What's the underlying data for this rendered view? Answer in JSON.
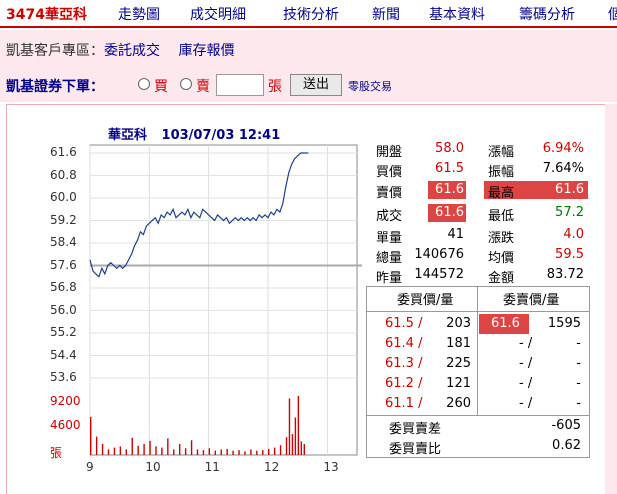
{
  "nav": {
    "stock": "3474華亞科",
    "items": [
      "走勢圖",
      "成交明細",
      "技術分析",
      "新聞",
      "基本資料",
      "籌碼分析",
      "個"
    ]
  },
  "zone": {
    "label": "凱基客戶專區：",
    "link1": "委託成交",
    "link2": "庫存報價"
  },
  "order": {
    "label": "凱基證券下單：",
    "buy": "買",
    "sell": "賣",
    "unit": "張",
    "send": "送出",
    "odd": "零股交易"
  },
  "chart_data": {
    "type": "line",
    "title": "華亞科",
    "datetime": "103/07/03 12:41",
    "y_ticks": [
      "61.6",
      "60.8",
      "60.0",
      "59.2",
      "58.4",
      "57.6",
      "56.8",
      "56.0",
      "55.2",
      "54.4",
      "53.6"
    ],
    "ylim": [
      53.6,
      61.6
    ],
    "ref_price": 57.6,
    "volume_ticks": [
      "9200",
      "4600",
      "張"
    ],
    "x_ticks": [
      "9",
      "10",
      "11",
      "12",
      "13"
    ],
    "x_range_hours": [
      9,
      13.5
    ],
    "series": [
      {
        "x": [
          9.0,
          9.05,
          9.1,
          9.15,
          9.2,
          9.25,
          9.3,
          9.35,
          9.4,
          9.45,
          9.5,
          9.55,
          9.6,
          9.65,
          9.7,
          9.75,
          9.8,
          9.85,
          9.9,
          9.95,
          10.0,
          10.05,
          10.1,
          10.15,
          10.2,
          10.25,
          10.3,
          10.35,
          10.4,
          10.45,
          10.5,
          10.55,
          10.6,
          10.65,
          10.7,
          10.75,
          10.8,
          10.85,
          10.9,
          10.95,
          11.0,
          11.05,
          11.1,
          11.15,
          11.2,
          11.25,
          11.3,
          11.35,
          11.4,
          11.45,
          11.5,
          11.55,
          11.6,
          11.65,
          11.7,
          11.75,
          11.8,
          11.85,
          11.9,
          11.95,
          12.0,
          12.05,
          12.1,
          12.15,
          12.2,
          12.25,
          12.3,
          12.35,
          12.4,
          12.45,
          12.5,
          12.55,
          12.6,
          12.68
        ],
        "y": [
          57.8,
          57.4,
          57.3,
          57.2,
          57.5,
          57.3,
          57.6,
          57.7,
          57.6,
          57.5,
          57.6,
          57.5,
          57.6,
          57.8,
          58.0,
          58.3,
          58.5,
          58.8,
          58.7,
          59.0,
          59.1,
          59.2,
          59.3,
          59.1,
          59.4,
          59.3,
          59.5,
          59.4,
          59.6,
          59.3,
          59.4,
          59.5,
          59.4,
          59.6,
          59.3,
          59.5,
          59.4,
          59.3,
          59.6,
          59.5,
          59.4,
          59.3,
          59.2,
          59.4,
          59.3,
          59.2,
          59.3,
          59.1,
          59.2,
          59.3,
          59.2,
          59.3,
          59.2,
          59.3,
          59.2,
          59.3,
          59.2,
          59.4,
          59.3,
          59.4,
          59.3,
          59.5,
          59.4,
          59.6,
          59.5,
          59.8,
          60.4,
          60.9,
          61.2,
          61.4,
          61.5,
          61.6,
          61.6,
          61.6
        ]
      }
    ],
    "volume": {
      "x": [
        9.0,
        9.1,
        9.2,
        9.3,
        9.4,
        9.5,
        9.6,
        9.7,
        9.8,
        9.9,
        10.0,
        10.1,
        10.2,
        10.3,
        10.4,
        10.5,
        10.6,
        10.7,
        10.8,
        10.9,
        11.0,
        11.1,
        11.2,
        11.3,
        11.4,
        11.5,
        11.6,
        11.7,
        11.8,
        11.9,
        12.0,
        12.1,
        12.2,
        12.3,
        12.35,
        12.4,
        12.45,
        12.5,
        12.55,
        12.6
      ],
      "y": [
        6200,
        3000,
        1800,
        900,
        1200,
        1400,
        900,
        2800,
        1500,
        1800,
        2300,
        1400,
        1200,
        2700,
        900,
        1800,
        1100,
        2400,
        900,
        800,
        1100,
        700,
        900,
        1000,
        700,
        800,
        600,
        900,
        700,
        800,
        1000,
        1200,
        1600,
        2900,
        9200,
        3400,
        6100,
        9600,
        2200,
        1800
      ]
    }
  },
  "quote": {
    "rows": [
      {
        "k1": "開盤",
        "v1": "58.0",
        "k2": "漲幅",
        "v2": "6.94%"
      },
      {
        "k1": "買價",
        "v1": "61.5",
        "k2": "振幅",
        "v2": "7.64%"
      },
      {
        "k1": "賣價",
        "v1": "61.6",
        "k2": "最高",
        "v2": "61.6"
      },
      {
        "k1": "成交",
        "v1": "61.6",
        "k2": "最低",
        "v2": "57.2"
      },
      {
        "k1": "單量",
        "v1": "41",
        "k2": "漲跌",
        "v2": "4.0"
      },
      {
        "k1": "總量",
        "v1": "140676",
        "k2": "均價",
        "v2": "59.5"
      },
      {
        "k1": "昨量",
        "v1": "144572",
        "k2": "金額",
        "v2": "83.72"
      }
    ]
  },
  "book": {
    "bid_header": "委買價/量",
    "ask_header": "委賣價/量",
    "rows": [
      {
        "bid": "61.5 /",
        "bidq": "203",
        "ask": "61.6",
        "askq": "1595"
      },
      {
        "bid": "61.4 /",
        "bidq": "181",
        "ask": "- /",
        "askq": "-"
      },
      {
        "bid": "61.3 /",
        "bidq": "225",
        "ask": "- /",
        "askq": "-"
      },
      {
        "bid": "61.2 /",
        "bidq": "121",
        "ask": "- /",
        "askq": "-"
      },
      {
        "bid": "61.1 /",
        "bidq": "260",
        "ask": "- /",
        "askq": "-"
      }
    ],
    "diff_label": "委買賣差",
    "diff": "-605",
    "ratio_label": "委買賣比",
    "ratio": "0.62"
  }
}
